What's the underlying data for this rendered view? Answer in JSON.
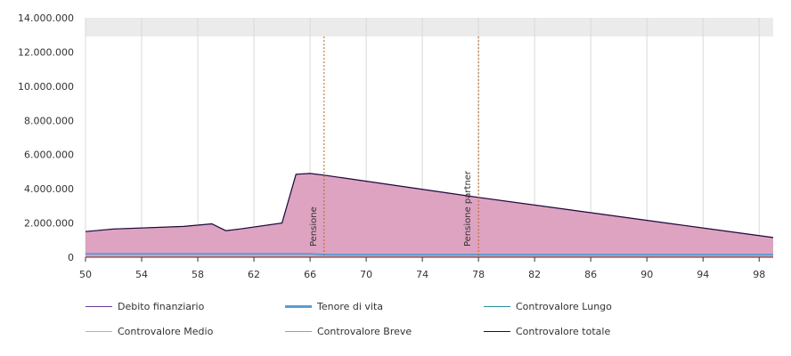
{
  "chart_data": {
    "type": "area",
    "title": "",
    "xlabel": "",
    "ylabel": "",
    "xlim": [
      50,
      99
    ],
    "ylim": [
      0,
      14000000
    ],
    "x_ticks": [
      "50",
      "54",
      "58",
      "62",
      "66",
      "70",
      "74",
      "78",
      "82",
      "86",
      "90",
      "94",
      "98"
    ],
    "y_ticks": [
      "0",
      "2.000.000",
      "4.000.000",
      "6.000.000",
      "8.000.000",
      "10.000.000",
      "12.000.000",
      "14.000.000"
    ],
    "grid": "vertical",
    "legend_position": "bottom",
    "markers": [
      {
        "label": "Pensione",
        "x": 67
      },
      {
        "label": "Pensione partner",
        "x": 78
      }
    ],
    "x": [
      50,
      52,
      57,
      59,
      60,
      61,
      64,
      65,
      66,
      67,
      78,
      99
    ],
    "series": [
      {
        "name": "Debito finanziario",
        "color": "#6a3d9a",
        "values": [
          0,
          0,
          0,
          0,
          0,
          0,
          0,
          0,
          0,
          0,
          0,
          0
        ]
      },
      {
        "name": "Tenore di vita",
        "color": "#5b9bd5",
        "values": [
          200000,
          200000,
          200000,
          200000,
          200000,
          200000,
          200000,
          200000,
          200000,
          150000,
          150000,
          150000
        ]
      },
      {
        "name": "Controvalore Lungo",
        "color": "#2e8b9a",
        "values": [
          0,
          0,
          0,
          0,
          0,
          0,
          0,
          0,
          0,
          0,
          0,
          0
        ]
      },
      {
        "name": "Controvalore Medio",
        "color": "#e0c000",
        "values": [
          0,
          0,
          0,
          0,
          0,
          0,
          0,
          0,
          0,
          0,
          0,
          0
        ]
      },
      {
        "name": "Controvalore Breve",
        "color": "#c77dcf",
        "values": [
          1500000,
          1650000,
          1800000,
          1950000,
          1550000,
          1650000,
          2000000,
          4850000,
          4900000,
          4800000,
          3500000,
          1150000
        ]
      },
      {
        "name": "Controvalore totale",
        "color": "#1a0a3a",
        "values": [
          1500000,
          1650000,
          1800000,
          1950000,
          1550000,
          1650000,
          2000000,
          4850000,
          4900000,
          4800000,
          3500000,
          1150000
        ]
      }
    ]
  }
}
